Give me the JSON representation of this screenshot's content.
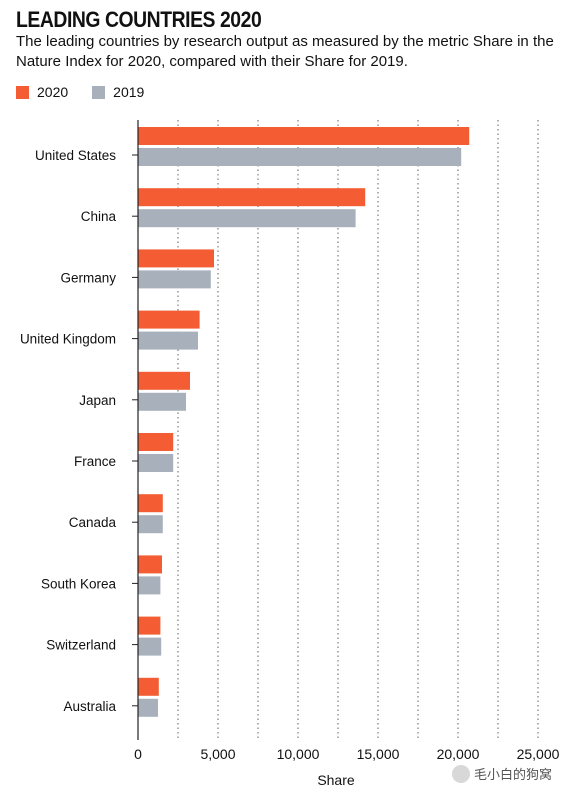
{
  "colors": {
    "y2020": "#f45d33",
    "y2019": "#a7b0bb",
    "grid": "#7d7d7d",
    "axis": "#222222"
  },
  "watermark": {
    "text": "毛小白的狗窝",
    "icon": "wechat-icon"
  },
  "chart_data": {
    "type": "bar",
    "orientation": "horizontal",
    "title": "LEADING COUNTRIES 2020",
    "subtitle": "The leading countries by research output as measured by the metric Share in the Nature Index for 2020, compared with their Share for 2019.",
    "xlabel": "Share",
    "ylabel": "",
    "xlim": [
      0,
      25000
    ],
    "xticks": [
      0,
      5000,
      10000,
      15000,
      20000,
      25000
    ],
    "xtick_labels": [
      "0",
      "5,000",
      "10,000",
      "15,000",
      "20,000",
      "25,000"
    ],
    "grid": "vertical dotted",
    "legend_position": "top-left",
    "categories": [
      "United States",
      "China",
      "Germany",
      "United Kingdom",
      "Japan",
      "France",
      "Canada",
      "South Korea",
      "Switzerland",
      "Australia"
    ],
    "series": [
      {
        "name": "2020",
        "values": [
          20700,
          14200,
          4750,
          3850,
          3250,
          2200,
          1550,
          1500,
          1400,
          1300
        ]
      },
      {
        "name": "2019",
        "values": [
          20200,
          13600,
          4550,
          3750,
          3000,
          2200,
          1550,
          1400,
          1450,
          1250
        ]
      }
    ]
  }
}
